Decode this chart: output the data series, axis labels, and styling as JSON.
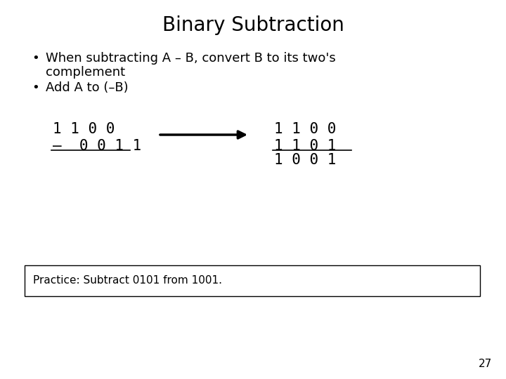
{
  "title": "Binary Subtraction",
  "title_fontsize": 20,
  "title_fontweight": "normal",
  "bg_color": "#ffffff",
  "text_color": "#000000",
  "bullet1_line1": "When subtracting A – B, convert B to its two's",
  "bullet1_line2": "complement",
  "bullet2": "Add A to (–B)",
  "left_row1": "1 1 0 0",
  "left_row2": "–  0 0 1 1",
  "right_row1": "1 1 0 0",
  "right_row2": "1 1 0 1",
  "right_row3": "1 0 0 1",
  "practice_text": "Practice: Subtract 0101 from 1001.",
  "page_number": "27",
  "mono_fontsize": 15,
  "bullet_fontsize": 13,
  "practice_fontsize": 11,
  "page_fontsize": 11
}
